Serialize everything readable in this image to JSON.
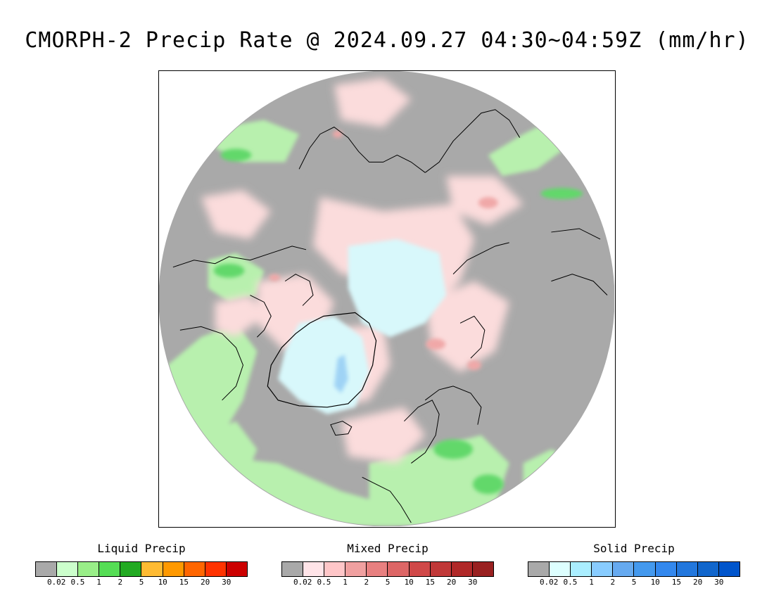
{
  "title": "CMORPH-2 Precip Rate @ 2024.09.27 04:30~04:59Z (mm/hr)",
  "map": {
    "projection": "north-polar-stereographic",
    "background_color": "#a9a9a9",
    "coastline_color": "#000000",
    "color_patches": {
      "liquid_light": "#b8f0ae",
      "liquid_mid": "#7ee07a",
      "liquid_strong": "#45d24e",
      "mixed_light": "#fbdcdc",
      "mixed_mid": "#f0a8a8",
      "solid_light": "#d8f8fb",
      "solid_mid": "#9fd3f5",
      "solid_strong": "#6aa9e8"
    }
  },
  "legends": [
    {
      "title": "Liquid Precip",
      "ticks": [
        "0.02",
        "0.5",
        "1",
        "2",
        "5",
        "10",
        "15",
        "20",
        "30"
      ],
      "colors": [
        "#a9a9a9",
        "#ccffcc",
        "#99ee88",
        "#55dd55",
        "#22aa22",
        "#ffbb33",
        "#ff9900",
        "#ff6600",
        "#ff3300",
        "#cc0000"
      ]
    },
    {
      "title": "Mixed Precip",
      "ticks": [
        "0.02",
        "0.5",
        "1",
        "2",
        "5",
        "10",
        "15",
        "20",
        "30"
      ],
      "colors": [
        "#a9a9a9",
        "#ffe4e8",
        "#ffc6c8",
        "#f0a0a0",
        "#e88080",
        "#dd6666",
        "#d04848",
        "#c03838",
        "#b02828",
        "#992020"
      ]
    },
    {
      "title": "Solid Precip",
      "ticks": [
        "0.02",
        "0.5",
        "1",
        "2",
        "5",
        "10",
        "15",
        "20",
        "30"
      ],
      "colors": [
        "#a9a9a9",
        "#ddffff",
        "#aaeeff",
        "#88ccff",
        "#66aaf0",
        "#4499ee",
        "#3388ee",
        "#2277dd",
        "#1166cc",
        "#0055cc"
      ]
    }
  ]
}
